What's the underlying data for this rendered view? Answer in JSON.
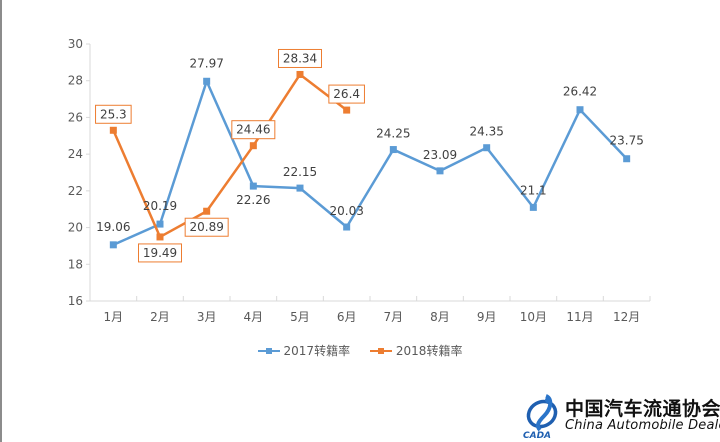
{
  "chart_data": {
    "type": "line",
    "title": "",
    "xlabel": "",
    "ylabel": "",
    "categories": [
      "1月",
      "2月",
      "3月",
      "4月",
      "5月",
      "6月",
      "7月",
      "8月",
      "9月",
      "10月",
      "11月",
      "12月"
    ],
    "ylim": [
      16,
      30
    ],
    "yticks": [
      16,
      18,
      20,
      22,
      24,
      26,
      28,
      30
    ],
    "grid": false,
    "legend_position": "bottom",
    "series": [
      {
        "name": "2017转籍率",
        "color": "#5B9BD5",
        "values": [
          19.06,
          20.19,
          27.97,
          22.26,
          22.15,
          20.03,
          24.25,
          23.09,
          24.35,
          21.1,
          26.42,
          23.75
        ],
        "labels": [
          "19.06",
          "20.19",
          "27.97",
          "22.26",
          "22.15",
          "20.03",
          "24.25",
          "23.09",
          "24.35",
          "21.1",
          "26.42",
          "23.75"
        ],
        "label_boxed": false
      },
      {
        "name": "2018转籍率",
        "color": "#ED7D31",
        "values": [
          25.3,
          19.49,
          20.89,
          24.46,
          28.34,
          26.4
        ],
        "labels": [
          "25.3",
          "19.49",
          "20.89",
          "24.46",
          "28.34",
          "26.4"
        ],
        "label_boxed": true
      }
    ]
  },
  "legend": {
    "items": [
      {
        "label": "2017转籍率",
        "color": "#5B9BD5"
      },
      {
        "label": "2018转籍率",
        "color": "#ED7D31"
      }
    ]
  },
  "logo": {
    "name_cn": "中国汽车流通协会",
    "name_en": "China  Automobile Dealers",
    "abbr": "CADA"
  }
}
